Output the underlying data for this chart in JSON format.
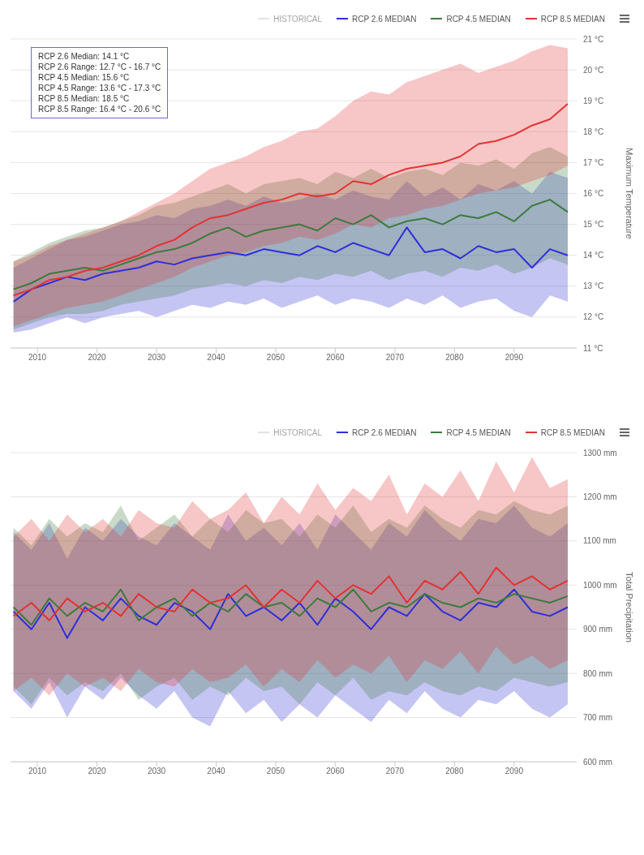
{
  "chart_data": [
    {
      "type": "line",
      "ylabel": "Maximum Temperature",
      "legend": "top right",
      "grid": "y",
      "x": [
        2006,
        2009,
        2012,
        2015,
        2018,
        2021,
        2024,
        2027,
        2030,
        2033,
        2036,
        2039,
        2042,
        2045,
        2048,
        2051,
        2054,
        2057,
        2060,
        2063,
        2066,
        2069,
        2072,
        2075,
        2078,
        2081,
        2084,
        2087,
        2090,
        2093,
        2096,
        2099
      ],
      "xlim": [
        2005.5,
        2100.5
      ],
      "xticks": [
        2010,
        2020,
        2030,
        2040,
        2050,
        2060,
        2070,
        2080,
        2090
      ],
      "ylim": [
        11,
        21
      ],
      "yticks": [
        {
          "value": 11,
          "label": "11 °C"
        },
        {
          "value": 12,
          "label": "12 °C"
        },
        {
          "value": 13,
          "label": "13 °C"
        },
        {
          "value": 14,
          "label": "14 °C"
        },
        {
          "value": 15,
          "label": "15 °C"
        },
        {
          "value": 16,
          "label": "16 °C"
        },
        {
          "value": 17,
          "label": "17 °C"
        },
        {
          "value": 18,
          "label": "18 °C"
        },
        {
          "value": 19,
          "label": "19 °C"
        },
        {
          "value": 20,
          "label": "20 °C"
        },
        {
          "value": 21,
          "label": "21 °C"
        }
      ],
      "annotations": [
        "RCP 2.6 Median: 14.1 °C",
        "RCP 2.6 Range: 12.7 °C - 16.7 °C",
        "RCP 4.5 Median: 15.6 °C",
        "RCP 4.5 Range: 13.6 °C - 17.3 °C",
        "RCP 8.5 Median: 18.5 °C",
        "RCP 8.5 Range: 16.4 °C - 20.6 °C"
      ],
      "series": [
        {
          "name": "HISTORICAL",
          "color": "#cccccc",
          "values": [
            null,
            null,
            null,
            null,
            null,
            null,
            null,
            null,
            null,
            null,
            null,
            null,
            null,
            null,
            null,
            null,
            null,
            null,
            null,
            null,
            null,
            null,
            null,
            null,
            null,
            null,
            null,
            null,
            null,
            null,
            null,
            null
          ]
        },
        {
          "name": "RCP 2.6 MEDIAN",
          "color": "#2f2fd8",
          "values": [
            12.5,
            12.9,
            13.1,
            13.3,
            13.2,
            13.4,
            13.5,
            13.6,
            13.8,
            13.7,
            13.9,
            14.0,
            14.1,
            14.0,
            14.2,
            14.1,
            14.0,
            14.3,
            14.1,
            14.4,
            14.2,
            14.0,
            14.9,
            14.1,
            14.2,
            13.9,
            14.3,
            14.1,
            14.2,
            13.6,
            14.2,
            14.0
          ],
          "lower": [
            11.5,
            11.6,
            11.8,
            12.0,
            11.8,
            12.0,
            12.1,
            12.2,
            12.0,
            12.2,
            12.4,
            12.3,
            12.5,
            12.4,
            12.6,
            12.3,
            12.5,
            12.7,
            12.4,
            12.6,
            12.5,
            12.3,
            12.6,
            12.4,
            12.7,
            12.3,
            12.5,
            12.6,
            12.2,
            12.0,
            12.7,
            12.5
          ],
          "upper": [
            13.6,
            13.9,
            14.2,
            14.5,
            14.6,
            14.8,
            15.0,
            15.1,
            15.3,
            15.2,
            15.5,
            15.6,
            15.8,
            15.6,
            15.9,
            15.7,
            15.8,
            16.0,
            15.8,
            16.1,
            15.9,
            15.8,
            16.4,
            15.9,
            16.2,
            15.8,
            16.3,
            16.1,
            16.4,
            16.0,
            16.7,
            16.5
          ]
        },
        {
          "name": "RCP 4.5 MEDIAN",
          "color": "#3d7a3d",
          "values": [
            12.9,
            13.1,
            13.4,
            13.5,
            13.6,
            13.5,
            13.7,
            13.9,
            14.1,
            14.2,
            14.4,
            14.7,
            14.9,
            14.6,
            14.8,
            14.9,
            15.0,
            14.8,
            15.2,
            15.0,
            15.3,
            14.9,
            15.1,
            15.2,
            15.0,
            15.3,
            15.2,
            15.4,
            15.1,
            15.6,
            15.8,
            15.4
          ],
          "lower": [
            11.6,
            11.8,
            12.0,
            12.1,
            12.1,
            12.2,
            12.4,
            12.5,
            12.6,
            12.7,
            12.9,
            13.0,
            13.1,
            13.0,
            13.2,
            13.1,
            13.3,
            13.2,
            13.4,
            13.3,
            13.5,
            13.2,
            13.4,
            13.5,
            13.3,
            13.6,
            13.5,
            13.7,
            13.4,
            13.6,
            13.9,
            13.7
          ],
          "upper": [
            13.8,
            14.1,
            14.4,
            14.6,
            14.8,
            14.9,
            15.1,
            15.3,
            15.6,
            15.7,
            15.9,
            16.1,
            16.3,
            16.0,
            16.3,
            16.4,
            16.5,
            16.3,
            16.7,
            16.5,
            16.8,
            16.5,
            16.7,
            16.8,
            16.6,
            17.0,
            16.9,
            17.1,
            16.8,
            17.3,
            17.5,
            17.2
          ]
        },
        {
          "name": "RCP 8.5 MEDIAN",
          "color": "#e23333",
          "values": [
            12.7,
            12.9,
            13.2,
            13.3,
            13.5,
            13.6,
            13.8,
            14.0,
            14.3,
            14.5,
            14.9,
            15.2,
            15.3,
            15.5,
            15.7,
            15.8,
            16.0,
            15.9,
            16.0,
            16.4,
            16.3,
            16.6,
            16.8,
            16.9,
            17.0,
            17.2,
            17.6,
            17.7,
            17.9,
            18.2,
            18.4,
            18.9
          ],
          "lower": [
            11.7,
            11.9,
            12.1,
            12.3,
            12.4,
            12.5,
            12.7,
            12.9,
            13.1,
            13.3,
            13.6,
            13.8,
            14.0,
            14.1,
            14.3,
            14.4,
            14.6,
            14.5,
            14.7,
            15.0,
            14.9,
            15.2,
            15.3,
            15.5,
            15.6,
            15.8,
            16.0,
            16.1,
            16.2,
            16.4,
            16.6,
            16.9
          ],
          "upper": [
            13.8,
            14.0,
            14.3,
            14.5,
            14.7,
            14.9,
            15.1,
            15.4,
            15.7,
            16.0,
            16.4,
            16.8,
            17.0,
            17.2,
            17.5,
            17.7,
            18.0,
            18.1,
            18.5,
            19.0,
            19.3,
            19.2,
            19.6,
            19.8,
            20.0,
            20.2,
            19.9,
            20.1,
            20.3,
            20.6,
            20.8,
            20.7
          ]
        }
      ]
    },
    {
      "type": "line",
      "ylabel": "Total Precipitation",
      "legend": "top right",
      "grid": "y",
      "x": [
        2006,
        2009,
        2012,
        2015,
        2018,
        2021,
        2024,
        2027,
        2030,
        2033,
        2036,
        2039,
        2042,
        2045,
        2048,
        2051,
        2054,
        2057,
        2060,
        2063,
        2066,
        2069,
        2072,
        2075,
        2078,
        2081,
        2084,
        2087,
        2090,
        2093,
        2096,
        2099
      ],
      "xlim": [
        2005.5,
        2100.5
      ],
      "xticks": [
        2010,
        2020,
        2030,
        2040,
        2050,
        2060,
        2070,
        2080,
        2090
      ],
      "ylim": [
        600,
        1300
      ],
      "yticks": [
        {
          "value": 600,
          "label": "600 mm"
        },
        {
          "value": 700,
          "label": "700 mm"
        },
        {
          "value": 800,
          "label": "800 mm"
        },
        {
          "value": 900,
          "label": "900 mm"
        },
        {
          "value": 1000,
          "label": "1000 mm"
        },
        {
          "value": 1100,
          "label": "1100 mm"
        },
        {
          "value": 1200,
          "label": "1200 mm"
        },
        {
          "value": 1300,
          "label": "1300 mm"
        }
      ],
      "series": [
        {
          "name": "HISTORICAL",
          "color": "#cccccc",
          "values": [
            null,
            null,
            null,
            null,
            null,
            null,
            null,
            null,
            null,
            null,
            null,
            null,
            null,
            null,
            null,
            null,
            null,
            null,
            null,
            null,
            null,
            null,
            null,
            null,
            null,
            null,
            null,
            null,
            null,
            null,
            null,
            null
          ]
        },
        {
          "name": "RCP 2.6 MEDIAN",
          "color": "#2f2fd8",
          "values": [
            940,
            900,
            960,
            880,
            950,
            920,
            970,
            930,
            910,
            960,
            940,
            900,
            980,
            930,
            950,
            920,
            960,
            910,
            970,
            940,
            900,
            950,
            930,
            980,
            940,
            920,
            960,
            950,
            990,
            940,
            930,
            950
          ],
          "lower": [
            760,
            720,
            780,
            700,
            770,
            740,
            790,
            750,
            720,
            760,
            700,
            680,
            760,
            710,
            740,
            690,
            730,
            700,
            750,
            720,
            690,
            740,
            710,
            760,
            720,
            700,
            740,
            730,
            760,
            720,
            700,
            730
          ],
          "upper": [
            1120,
            1080,
            1140,
            1060,
            1130,
            1100,
            1150,
            1110,
            1090,
            1140,
            1110,
            1080,
            1160,
            1100,
            1130,
            1090,
            1140,
            1080,
            1160,
            1120,
            1080,
            1140,
            1110,
            1170,
            1130,
            1100,
            1150,
            1140,
            1180,
            1130,
            1110,
            1140
          ]
        },
        {
          "name": "RCP 4.5 MEDIAN",
          "color": "#3d7a3d",
          "values": [
            950,
            910,
            970,
            930,
            960,
            940,
            990,
            920,
            950,
            970,
            930,
            960,
            940,
            980,
            950,
            960,
            930,
            970,
            950,
            990,
            940,
            960,
            950,
            980,
            960,
            950,
            970,
            960,
            980,
            970,
            960,
            975
          ],
          "lower": [
            770,
            730,
            790,
            750,
            780,
            760,
            800,
            740,
            770,
            790,
            740,
            770,
            750,
            790,
            760,
            770,
            730,
            780,
            750,
            790,
            740,
            760,
            750,
            780,
            760,
            750,
            770,
            760,
            790,
            780,
            770,
            780
          ],
          "upper": [
            1130,
            1090,
            1150,
            1110,
            1140,
            1120,
            1180,
            1100,
            1130,
            1160,
            1110,
            1150,
            1120,
            1170,
            1140,
            1150,
            1110,
            1160,
            1130,
            1180,
            1120,
            1150,
            1130,
            1180,
            1150,
            1130,
            1170,
            1160,
            1190,
            1170,
            1160,
            1180
          ]
        },
        {
          "name": "RCP 8.5 MEDIAN",
          "color": "#e23333",
          "values": [
            930,
            960,
            920,
            970,
            940,
            960,
            930,
            980,
            950,
            940,
            990,
            960,
            970,
            1000,
            950,
            990,
            960,
            1010,
            970,
            1000,
            980,
            1020,
            960,
            1010,
            990,
            1030,
            980,
            1040,
            1000,
            1020,
            990,
            1010
          ],
          "lower": [
            760,
            790,
            750,
            800,
            770,
            790,
            760,
            810,
            780,
            770,
            810,
            780,
            790,
            820,
            770,
            810,
            780,
            830,
            790,
            820,
            800,
            840,
            780,
            830,
            810,
            850,
            800,
            860,
            820,
            840,
            810,
            830
          ],
          "upper": [
            1110,
            1150,
            1100,
            1160,
            1120,
            1150,
            1110,
            1170,
            1140,
            1130,
            1190,
            1150,
            1170,
            1210,
            1140,
            1200,
            1160,
            1230,
            1170,
            1220,
            1190,
            1250,
            1160,
            1230,
            1200,
            1260,
            1190,
            1280,
            1210,
            1290,
            1220,
            1240
          ]
        }
      ]
    }
  ]
}
